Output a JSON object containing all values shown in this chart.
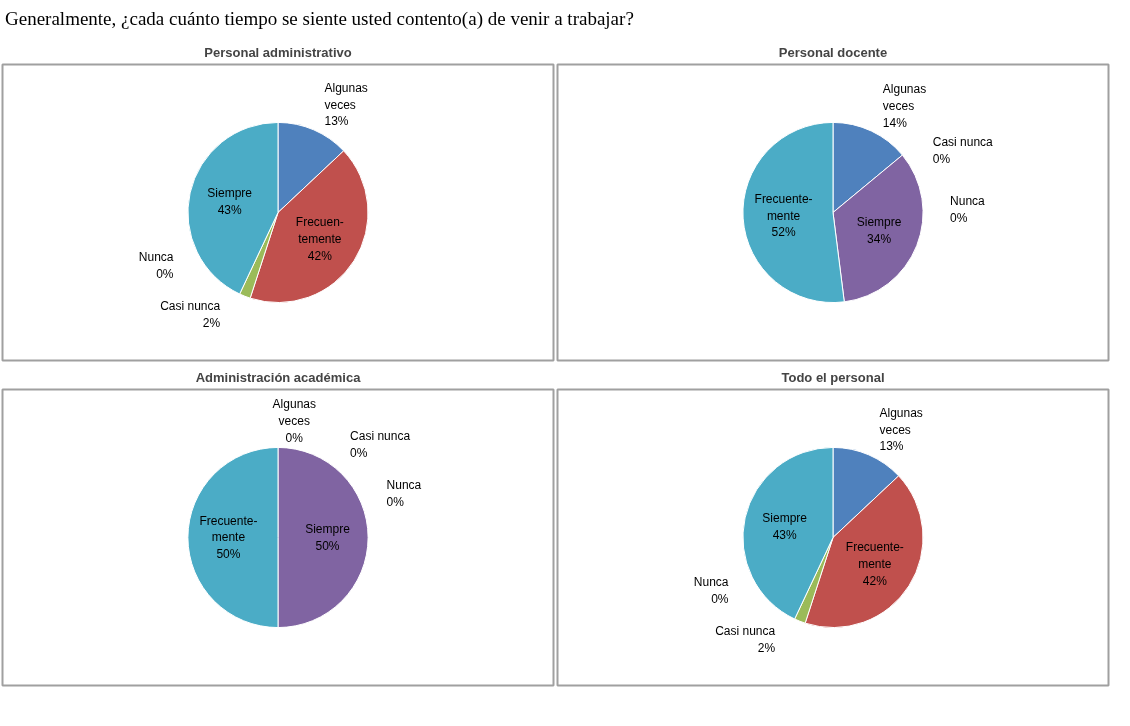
{
  "chart_data": [
    {
      "type": "pie",
      "title": "Personal administrativo",
      "annotations": [
        "Generalmente, ¿cada cuánto tiempo se siente usted contento(a) de venir a trabajar?"
      ],
      "categories": [
        "Algunas\nveces",
        "Frecuen-\ntemente",
        "Casi nunca",
        "Nunca",
        "Siempre"
      ],
      "values": [
        13,
        42,
        2,
        0,
        43
      ],
      "colors": [
        "#4f81bd",
        "#c0504d",
        "#9bbb59",
        "#8064a2",
        "#4bacc6"
      ],
      "value_labels": [
        "13%",
        "42%",
        "2%",
        "0%",
        "43%"
      ]
    },
    {
      "type": "pie",
      "title": "Personal docente",
      "categories": [
        "Algunas\nveces",
        "Casi nunca",
        "Nunca",
        "Siempre",
        "Frecuente-\nmente"
      ],
      "values": [
        14,
        0,
        0,
        34,
        52
      ],
      "colors": [
        "#4f81bd",
        "#c0504d",
        "#9bbb59",
        "#8064a2",
        "#4bacc6"
      ],
      "value_labels": [
        "14%",
        "0%",
        "0%",
        "34%",
        "52%"
      ]
    },
    {
      "type": "pie",
      "title": "Administración académica",
      "categories": [
        "Algunas\nveces",
        "Casi nunca",
        "Nunca",
        "Siempre",
        "Frecuente-\nmente"
      ],
      "values": [
        0,
        0,
        0,
        50,
        50
      ],
      "colors": [
        "#4f81bd",
        "#c0504d",
        "#9bbb59",
        "#8064a2",
        "#4bacc6"
      ],
      "value_labels": [
        "0%",
        "0%",
        "0%",
        "50%",
        "50%"
      ]
    },
    {
      "type": "pie",
      "title": "Todo el personal",
      "categories": [
        "Algunas\nveces",
        "Frecuente-\nmente",
        "Casi nunca",
        "Nunca",
        "Siempre"
      ],
      "values": [
        13,
        42,
        2,
        0,
        43
      ],
      "colors": [
        "#4f81bd",
        "#c0504d",
        "#9bbb59",
        "#8064a2",
        "#4bacc6"
      ],
      "value_labels": [
        "13%",
        "42%",
        "2%",
        "0%",
        "43%"
      ]
    }
  ]
}
